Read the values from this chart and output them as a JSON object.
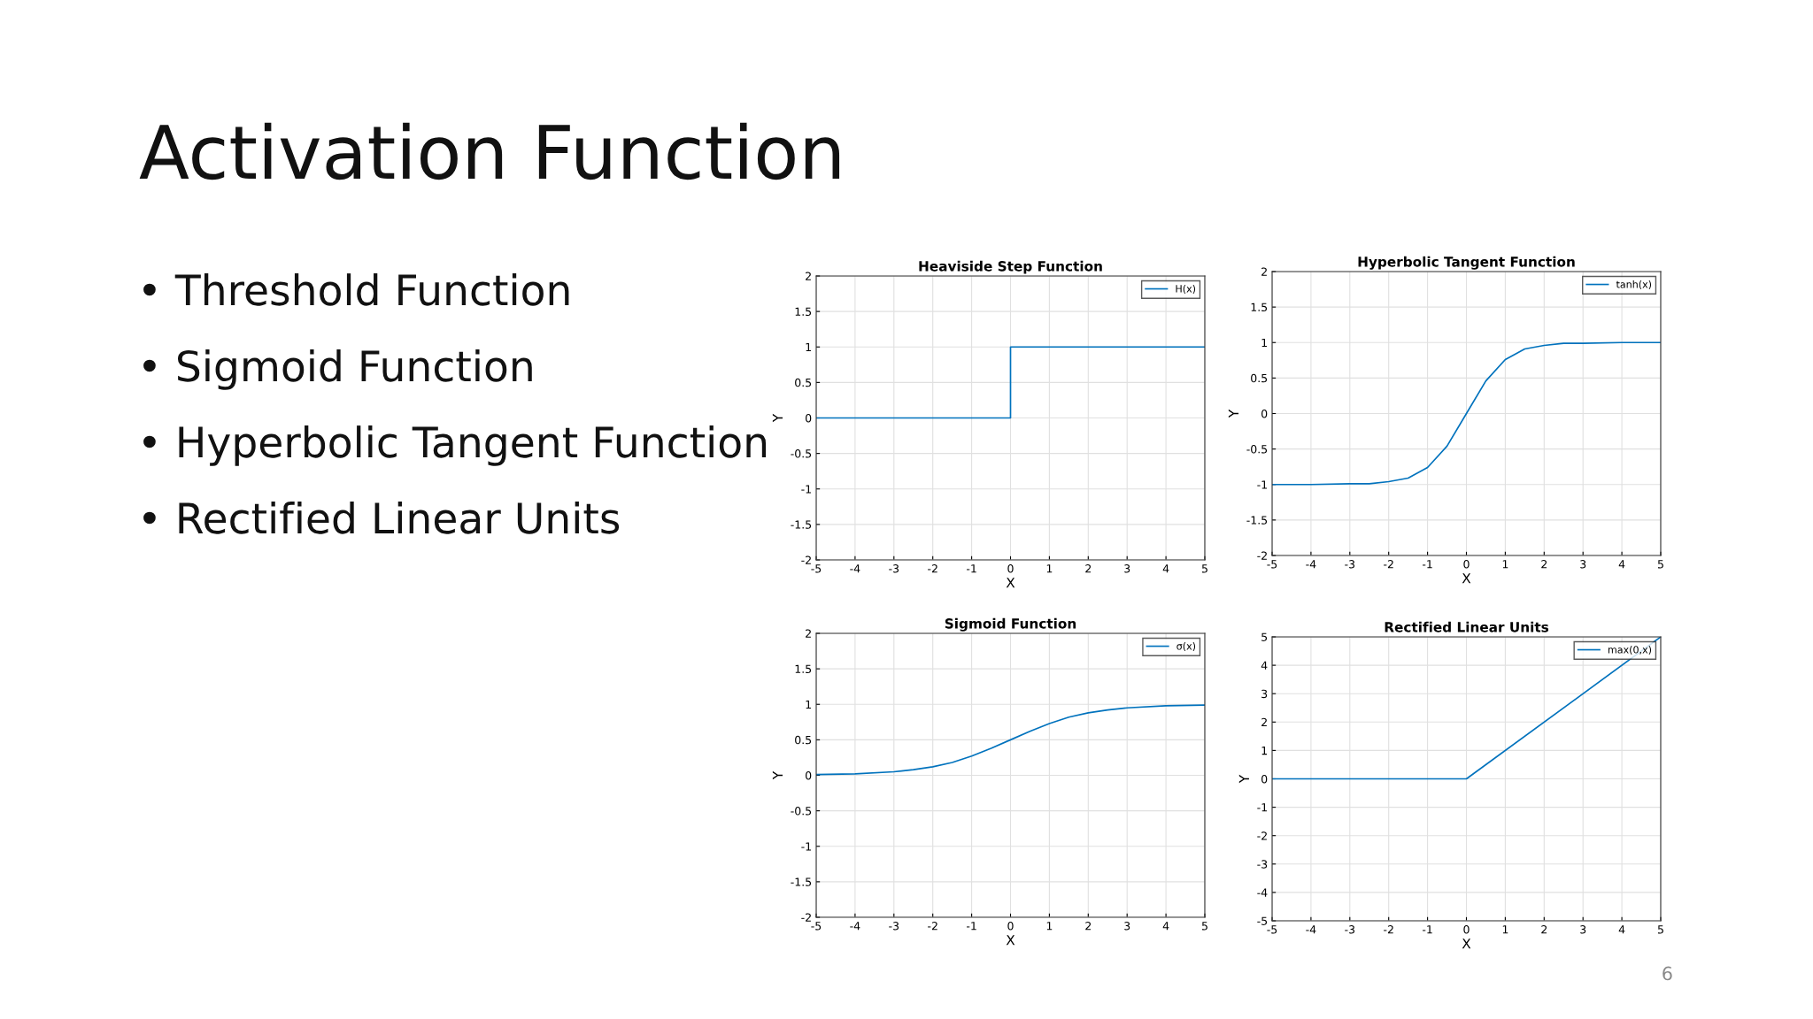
{
  "chart_data": [
    {
      "type": "other",
      "title": "Activation Function",
      "annotations": [
        "• Threshold Function",
        "• Sigmoid Function",
        "• Hyperbolic Tangent Function",
        "• Rectified Linear Units",
        "6"
      ]
    },
    {
      "type": "line",
      "title": "Heaviside Step Function",
      "xlabel": "X",
      "ylabel": "Y",
      "xlim": [
        -5,
        5
      ],
      "ylim": [
        -2,
        2
      ],
      "xticks": [
        -5,
        -4,
        -3,
        -2,
        -1,
        0,
        1,
        2,
        3,
        4,
        5
      ],
      "yticks": [
        -2,
        -1.5,
        -1,
        -0.5,
        0,
        0.5,
        1,
        1.5,
        2
      ],
      "grid": true,
      "legend": "top right",
      "series": [
        {
          "name": "H(x)",
          "color": "#0072bd",
          "x": [
            -5,
            0,
            0,
            5
          ],
          "values": [
            0,
            0,
            1,
            1
          ]
        }
      ]
    },
    {
      "type": "line",
      "title": "Hyperbolic Tangent Function",
      "xlabel": "X",
      "ylabel": "Y",
      "xlim": [
        -5,
        5
      ],
      "ylim": [
        -2,
        2
      ],
      "xticks": [
        -5,
        -4,
        -3,
        -2,
        -1,
        0,
        1,
        2,
        3,
        4,
        5
      ],
      "yticks": [
        -2,
        -1.5,
        -1,
        -0.5,
        0,
        0.5,
        1,
        1.5,
        2
      ],
      "grid": true,
      "legend": "top right",
      "series": [
        {
          "name": "tanh(x)",
          "color": "#0072bd",
          "x": [
            -5,
            -4,
            -3,
            -2.5,
            -2,
            -1.5,
            -1,
            -0.5,
            0,
            0.5,
            1,
            1.5,
            2,
            2.5,
            3,
            4,
            5
          ],
          "values": [
            -1.0,
            -1.0,
            -0.99,
            -0.99,
            -0.96,
            -0.91,
            -0.76,
            -0.46,
            0,
            0.46,
            0.76,
            0.91,
            0.96,
            0.99,
            0.99,
            1.0,
            1.0
          ]
        }
      ]
    },
    {
      "type": "line",
      "title": "Sigmoid Function",
      "xlabel": "X",
      "ylabel": "Y",
      "xlim": [
        -5,
        5
      ],
      "ylim": [
        -2,
        2
      ],
      "xticks": [
        -5,
        -4,
        -3,
        -2,
        -1,
        0,
        1,
        2,
        3,
        4,
        5
      ],
      "yticks": [
        -2,
        -1.5,
        -1,
        -0.5,
        0,
        0.5,
        1,
        1.5,
        2
      ],
      "grid": true,
      "legend": "top right",
      "series": [
        {
          "name": "σ(x)",
          "color": "#0072bd",
          "x": [
            -5,
            -4,
            -3,
            -2.5,
            -2,
            -1.5,
            -1,
            -0.5,
            0,
            0.5,
            1,
            1.5,
            2,
            2.5,
            3,
            4,
            5
          ],
          "values": [
            0.01,
            0.02,
            0.05,
            0.08,
            0.12,
            0.18,
            0.27,
            0.38,
            0.5,
            0.62,
            0.73,
            0.82,
            0.88,
            0.92,
            0.95,
            0.98,
            0.99
          ]
        }
      ]
    },
    {
      "type": "line",
      "title": "Rectified Linear Units",
      "xlabel": "X",
      "ylabel": "Y",
      "xlim": [
        -5,
        5
      ],
      "ylim": [
        -5,
        5
      ],
      "xticks": [
        -5,
        -4,
        -3,
        -2,
        -1,
        0,
        1,
        2,
        3,
        4,
        5
      ],
      "yticks": [
        -5,
        -4,
        -3,
        -2,
        -1,
        0,
        1,
        2,
        3,
        4,
        5
      ],
      "grid": true,
      "legend": "top right",
      "series": [
        {
          "name": "max(0,x)",
          "color": "#0072bd",
          "x": [
            -5,
            0,
            5
          ],
          "values": [
            0,
            0,
            5
          ]
        }
      ]
    }
  ]
}
